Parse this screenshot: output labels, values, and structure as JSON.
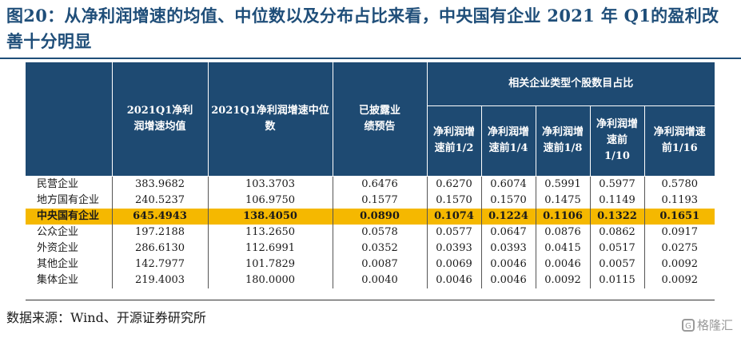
{
  "title": "图20：从净利润增速的均值、中位数以及分布占比来看，中央国有企业 2021 年 Q1的盈利改善十分明显",
  "table": {
    "headers": {
      "mean": "2021Q1净利润增速均值",
      "median": "2021Q1净利润增速中位数",
      "disclosed": "已披露业绩预告",
      "group": "相关企业类型个股数目占比",
      "top_half": "净利润增速前1/2",
      "top_quarter": "净利润增速前1/4",
      "top_eighth": "净利润增速前1/8",
      "top_tenth": "净利润增速前1/10",
      "top_sixteenth": "净利润增速前1/16"
    },
    "rows": [
      {
        "name": "民营企业",
        "values": [
          "383.9682",
          "103.3703",
          "0.6476",
          "0.6270",
          "0.6074",
          "0.5991",
          "0.5977",
          "0.5780"
        ]
      },
      {
        "name": "地方国有企业",
        "values": [
          "240.5237",
          "106.9750",
          "0.1577",
          "0.1570",
          "0.1570",
          "0.1475",
          "0.1149",
          "0.1193"
        ]
      },
      {
        "name": "中央国有企业",
        "values": [
          "645.4943",
          "138.4050",
          "0.0890",
          "0.1074",
          "0.1224",
          "0.1106",
          "0.1322",
          "0.1651"
        ]
      },
      {
        "name": "公众企业",
        "values": [
          "197.2188",
          "113.2650",
          "0.0578",
          "0.0577",
          "0.0647",
          "0.0876",
          "0.0862",
          "0.0917"
        ]
      },
      {
        "name": "外资企业",
        "values": [
          "286.6130",
          "112.6991",
          "0.0352",
          "0.0393",
          "0.0393",
          "0.0415",
          "0.0517",
          "0.0275"
        ]
      },
      {
        "name": "其他企业",
        "values": [
          "142.7977",
          "101.7829",
          "0.0087",
          "0.0069",
          "0.0046",
          "0.0046",
          "0.0057",
          "0.0092"
        ]
      },
      {
        "name": "集体企业",
        "values": [
          "219.4003",
          "180.0000",
          "0.0040",
          "0.0046",
          "0.0046",
          "0.0092",
          "0.0115",
          "0.0092"
        ]
      }
    ]
  },
  "source": "数据来源：Wind、开源证券研究所",
  "watermark": "格隆汇",
  "colors": {
    "header_bg": "#1e4a72",
    "highlight": "#f5b800",
    "title": "#1f4e79"
  }
}
